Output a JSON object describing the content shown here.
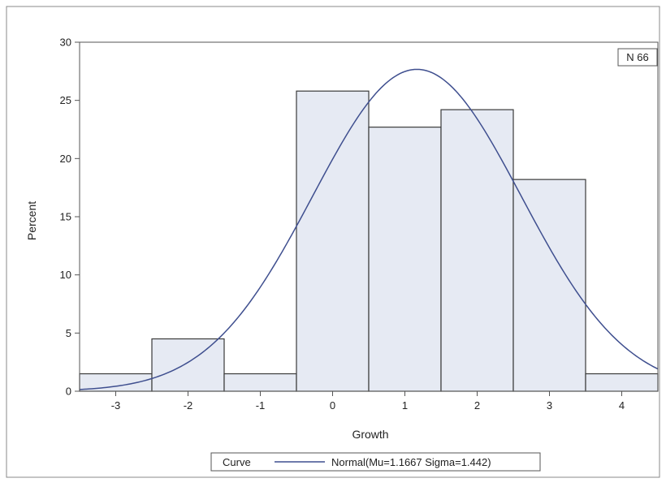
{
  "chart_data": {
    "type": "bar",
    "xlabel": "Growth",
    "ylabel": "Percent",
    "xlim": [
      -3.5,
      4.5
    ],
    "ylim": [
      0,
      30
    ],
    "x_ticks": [
      "-3",
      "-2",
      "-1",
      "0",
      "1",
      "2",
      "3",
      "4"
    ],
    "y_ticks": [
      "0",
      "5",
      "10",
      "15",
      "20",
      "25",
      "30"
    ],
    "bins": [
      {
        "center": -3,
        "value": 1.5
      },
      {
        "center": -2,
        "value": 4.5
      },
      {
        "center": -1,
        "value": 1.5
      },
      {
        "center": 0,
        "value": 25.8
      },
      {
        "center": 1,
        "value": 22.7
      },
      {
        "center": 2,
        "value": 24.2
      },
      {
        "center": 3,
        "value": 18.2
      },
      {
        "center": 4,
        "value": 1.5
      }
    ],
    "bin_width": 1,
    "inset_label": "N 66",
    "curve": {
      "type": "normal",
      "mu": 1.1667,
      "sigma": 1.442
    },
    "legend": {
      "title": "Curve",
      "entry": "Normal(Mu=1.1667 Sigma=1.442)",
      "placement": "bottom"
    },
    "grid": false
  },
  "colors": {
    "bar_fill": "#e6eaf3",
    "bar_stroke": "#3a3a3a",
    "curve": "#3f4f8f",
    "frame": "#555555"
  }
}
